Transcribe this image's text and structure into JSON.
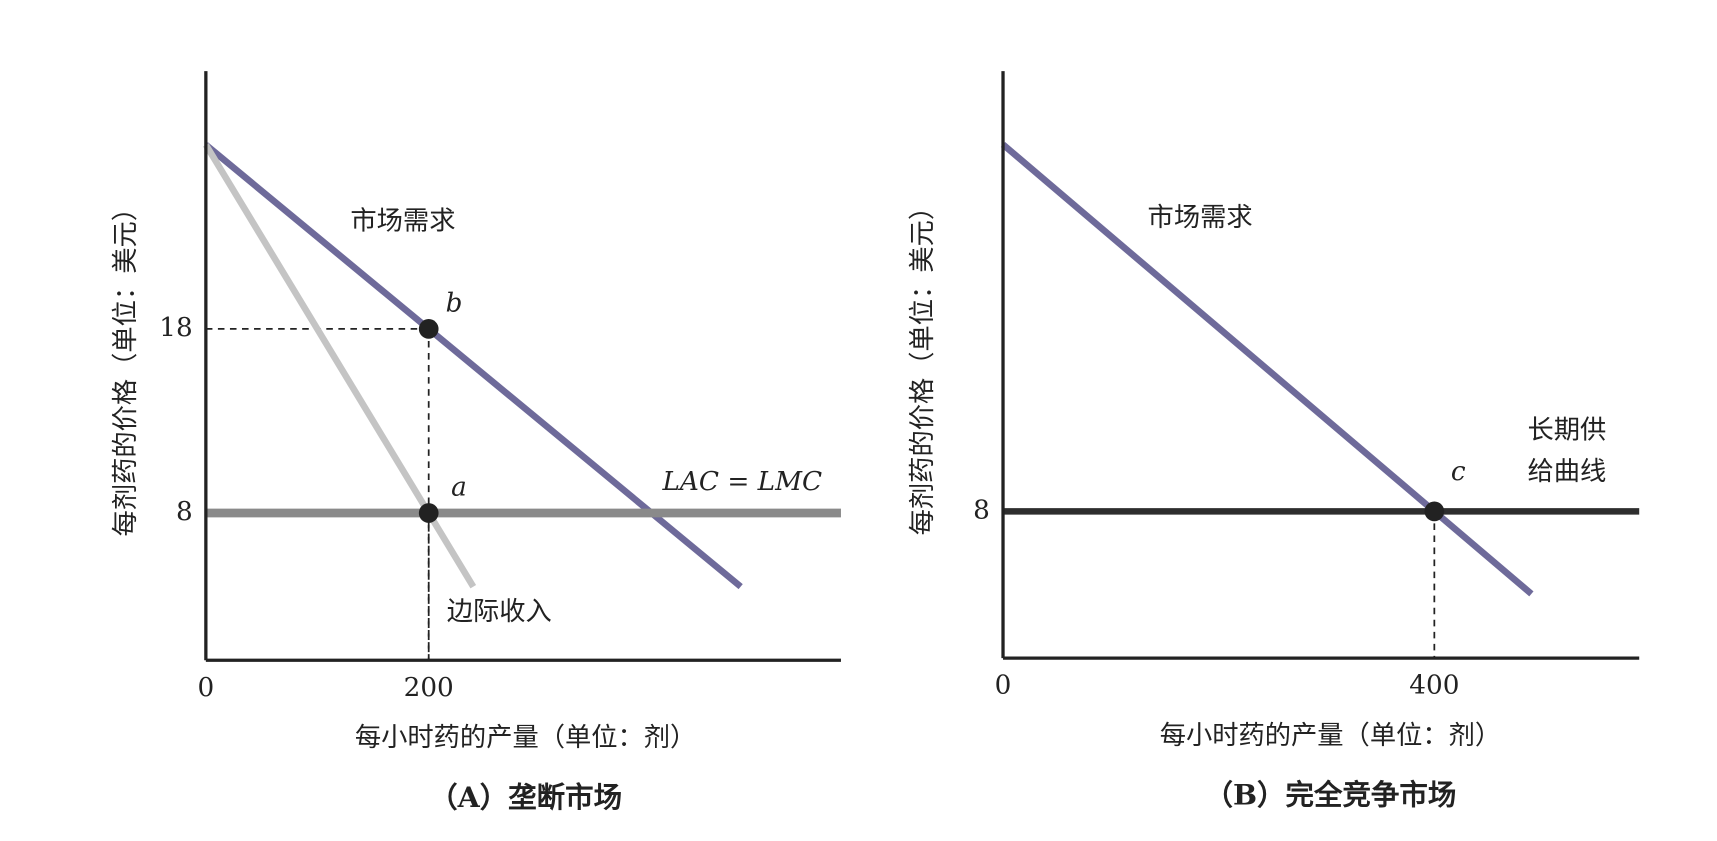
{
  "chart_data": [
    {
      "type": "line",
      "subtitle": "（A）垄断市场",
      "xlabel": "每小时药的产量（单位：剂）",
      "ylabel": "每剂药的价格（单位：美元）",
      "xlim": [
        0,
        570
      ],
      "ylim": [
        0,
        32
      ],
      "xticks": [
        0,
        200
      ],
      "yticks": [
        8,
        18
      ],
      "series": [
        {
          "name": "市场需求",
          "color": "#6e6a9a",
          "x": [
            0,
            480
          ],
          "values": [
            28,
            4
          ]
        },
        {
          "name": "边际收入",
          "color": "#c4c4c4",
          "x": [
            0,
            240
          ],
          "values": [
            28,
            4
          ]
        },
        {
          "name": "LAC = LMC",
          "color": "#8a8a8a",
          "x": [
            0,
            570
          ],
          "values": [
            8,
            8
          ]
        }
      ],
      "points": [
        {
          "label": "b",
          "x": 200,
          "y": 18
        },
        {
          "label": "a",
          "x": 200,
          "y": 8
        }
      ]
    },
    {
      "type": "line",
      "subtitle": "（B）完全竞争市场",
      "xlabel": "每小时药的产量（单位：剂）",
      "ylabel": "每剂药的价格（单位：美元）",
      "xlim": [
        0,
        590
      ],
      "ylim": [
        0,
        32
      ],
      "xticks": [
        0,
        400
      ],
      "yticks": [
        8
      ],
      "series": [
        {
          "name": "市场需求",
          "color": "#6e6a9a",
          "x": [
            0,
            490
          ],
          "values": [
            28,
            3.5
          ]
        },
        {
          "name": [
            "长期供",
            "给曲线"
          ],
          "color": "#2e2e2e",
          "x": [
            0,
            590
          ],
          "values": [
            8,
            8
          ]
        }
      ],
      "points": [
        {
          "label": "c",
          "x": 400,
          "y": 8
        }
      ]
    }
  ]
}
